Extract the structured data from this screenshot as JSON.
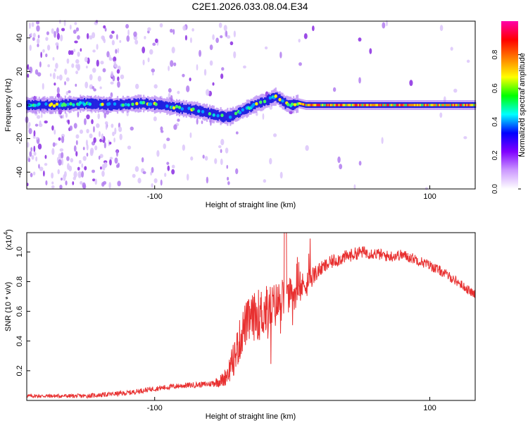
{
  "title": "C2E1.2026.033.08.04.E34",
  "chart_data": [
    {
      "type": "heatmap",
      "name": "spectrogram",
      "xlabel": "Height of straight line (km)",
      "ylabel": "Frequency (Hz)",
      "xlim": [
        -193,
        133
      ],
      "ylim": [
        -50,
        50
      ],
      "xticks": [
        -100,
        100
      ],
      "yticks": [
        -40,
        -20,
        0,
        20,
        40
      ],
      "colorbar": {
        "label": "Normalized spectral amplitude",
        "range": [
          0,
          1
        ],
        "ticks": [
          0.0,
          0.2,
          0.4,
          0.6,
          0.8
        ],
        "colormap": [
          "#ffffff",
          "#cc99ff",
          "#8000ff",
          "#0000ff",
          "#00ffff",
          "#00ff00",
          "#ffff00",
          "#ff8000",
          "#ff0000",
          "#ff00aa"
        ]
      },
      "ridge": {
        "x": [
          -193,
          -170,
          -150,
          -130,
          -110,
          -95,
          -80,
          -70,
          -60,
          -50,
          -45,
          -40,
          -35,
          -30,
          -25,
          -20,
          -15,
          -12,
          -8,
          -5,
          0,
          5,
          10,
          20,
          50,
          100,
          133
        ],
        "freq": [
          0,
          0,
          1,
          0,
          1,
          0,
          -2,
          -3,
          -5,
          -7,
          -7,
          -5,
          -3,
          -1,
          1,
          2,
          4,
          5,
          3,
          1,
          0,
          1,
          0,
          0,
          0,
          0,
          0
        ]
      }
    },
    {
      "type": "line",
      "name": "snr",
      "xlabel": "Height of straight line (km)",
      "ylabel": "SNR (10 * v/v)",
      "yunit_label": "(x10",
      "yunit_exp": "4",
      "yunit_close": ")",
      "xlim": [
        -193,
        133
      ],
      "ylim": [
        0,
        1.13
      ],
      "xticks": [
        -100,
        100
      ],
      "yticks": [
        0.2,
        0.4,
        0.6,
        0.8,
        1.0
      ],
      "ytick_labels": [
        "0.2",
        "0.4",
        "0.6",
        "0.8",
        "1.0"
      ],
      "color": "#e83030",
      "envelope": {
        "x": [
          -193,
          -150,
          -120,
          -100,
          -80,
          -60,
          -50,
          -45,
          -40,
          -35,
          -30,
          -25,
          -20,
          -15,
          -10,
          -5,
          0,
          5,
          10,
          20,
          30,
          40,
          50,
          60,
          70,
          80,
          90,
          100,
          110,
          120,
          133
        ],
        "y": [
          0.03,
          0.03,
          0.05,
          0.08,
          0.1,
          0.11,
          0.14,
          0.22,
          0.35,
          0.5,
          0.55,
          0.58,
          0.6,
          0.62,
          0.66,
          0.68,
          0.72,
          0.74,
          0.8,
          0.88,
          0.94,
          0.97,
          1.0,
          0.99,
          0.97,
          0.98,
          0.95,
          0.91,
          0.86,
          0.8,
          0.71
        ]
      },
      "noise": {
        "x": [
          -193,
          -60,
          -50,
          -40,
          -20,
          0,
          20,
          60,
          133
        ],
        "amp": [
          0.012,
          0.02,
          0.05,
          0.14,
          0.18,
          0.12,
          0.05,
          0.04,
          0.03
        ]
      }
    }
  ]
}
